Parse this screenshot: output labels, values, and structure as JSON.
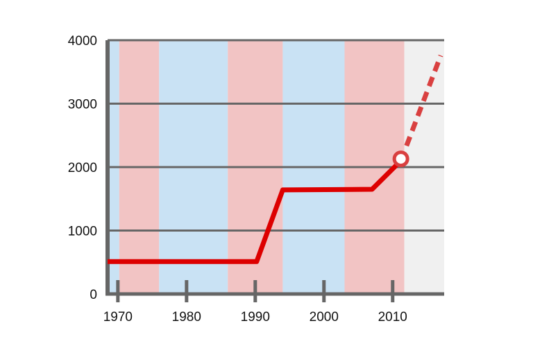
{
  "chart_data": {
    "type": "line",
    "title": "",
    "xlabel": "",
    "ylabel": "",
    "xlim": [
      1968.5,
      2017.5
    ],
    "ylim": [
      0,
      4000
    ],
    "grid": true,
    "legend": "none",
    "x_ticks": [
      1970,
      1980,
      1990,
      2000,
      2010
    ],
    "x_tick_labels": [
      "1970",
      "1980",
      "1990",
      "2000",
      "2010"
    ],
    "y_ticks": [
      0,
      1000,
      2000,
      3000,
      4000
    ],
    "y_tick_labels": [
      "0",
      "1000",
      "2000",
      "3000",
      "4000"
    ],
    "background_bands": [
      {
        "from": 1968.5,
        "to": 1970.2,
        "color": "#c9e2f4"
      },
      {
        "from": 1970.2,
        "to": 1976.0,
        "color": "#f2c4c4"
      },
      {
        "from": 1976.0,
        "to": 1986.0,
        "color": "#c9e2f4"
      },
      {
        "from": 1986.0,
        "to": 1994.0,
        "color": "#f2c4c4"
      },
      {
        "from": 1994.0,
        "to": 2003.0,
        "color": "#c9e2f4"
      },
      {
        "from": 2003.0,
        "to": 2011.7,
        "color": "#f2c4c4"
      },
      {
        "from": 2011.7,
        "to": 2017.5,
        "color": "#f0f0f0"
      }
    ],
    "series": [
      {
        "style": "solid",
        "color": "#dd0000",
        "x": [
          1968.5,
          1990.2,
          1994.0,
          2007.0,
          2011.2
        ],
        "y": [
          510,
          510,
          1640,
          1650,
          2100
        ]
      },
      {
        "style": "dashed",
        "color": "#d94040",
        "x": [
          2011.2,
          2017.0
        ],
        "y": [
          2100,
          3760
        ]
      }
    ],
    "highlight_point": {
      "x": 2011.2,
      "y": 2130,
      "color": "#d94040"
    },
    "colors": {
      "axis": "#666666",
      "grid": "#666666"
    }
  }
}
